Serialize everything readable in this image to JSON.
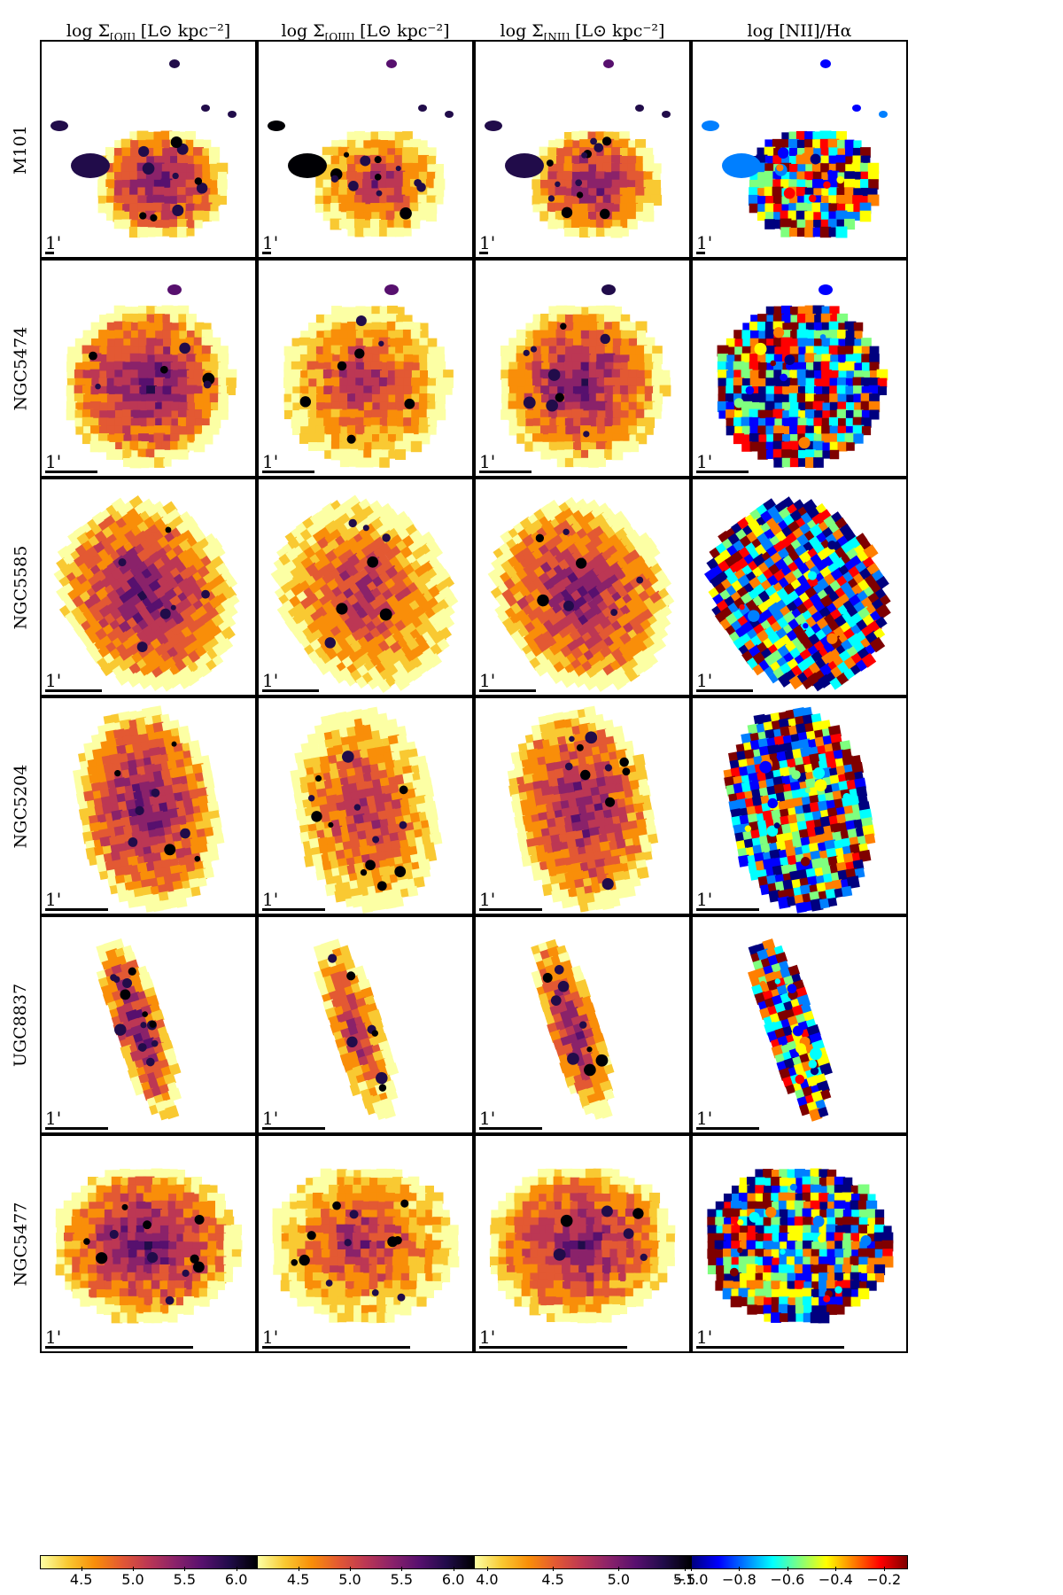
{
  "figure": {
    "column_titles": [
      {
        "prefix": "log Σ",
        "sub": "[OII]",
        "suffix": " [L⊙ kpc⁻²]"
      },
      {
        "prefix": "log Σ",
        "sub": "[OIII]",
        "suffix": " [L⊙ kpc⁻²]"
      },
      {
        "prefix": "log Σ",
        "sub": "[NII]",
        "suffix": " [L⊙ kpc⁻²]"
      },
      {
        "prefix": "log [NII]/Hα",
        "sub": "",
        "suffix": ""
      }
    ],
    "rows": [
      {
        "galaxy": "M101",
        "scale_label": "1'",
        "scale_fraction": 0.04
      },
      {
        "galaxy": "NGC5474",
        "scale_label": "1'",
        "scale_fraction": 0.24
      },
      {
        "galaxy": "NGC5585",
        "scale_label": "1'",
        "scale_fraction": 0.26
      },
      {
        "galaxy": "NGC5204",
        "scale_label": "1'",
        "scale_fraction": 0.29
      },
      {
        "galaxy": "UGC8837",
        "scale_label": "1'",
        "scale_fraction": 0.29
      },
      {
        "galaxy": "NGC5477",
        "scale_label": "1'",
        "scale_fraction": 0.68
      }
    ],
    "colorbars": [
      {
        "name": "OII",
        "colormap": "inferno_r",
        "range": [
          4.1,
          6.2
        ],
        "ticks": [
          "4.5",
          "5.0",
          "5.5",
          "6.0"
        ],
        "tick_values": [
          4.5,
          5.0,
          5.5,
          6.0
        ]
      },
      {
        "name": "OIII",
        "colormap": "inferno_r",
        "range": [
          4.1,
          6.2
        ],
        "ticks": [
          "4.5",
          "5.0",
          "5.5",
          "6.0"
        ],
        "tick_values": [
          4.5,
          5.0,
          5.5,
          6.0
        ]
      },
      {
        "name": "NII",
        "colormap": "inferno_r",
        "range": [
          3.9,
          5.55
        ],
        "ticks": [
          "4.0",
          "4.5",
          "5.0",
          "5.5"
        ],
        "tick_values": [
          4.0,
          4.5,
          5.0,
          5.5
        ]
      },
      {
        "name": "NII/Ha",
        "colormap": "jet",
        "range": [
          -1.0,
          -0.1
        ],
        "ticks": [
          "−1.0",
          "−0.8",
          "−0.6",
          "−0.4",
          "−0.2"
        ],
        "tick_values": [
          -1.0,
          -0.8,
          -0.6,
          -0.4,
          -0.2
        ]
      }
    ],
    "colors": {
      "inferno_low": "#fcffa4",
      "inferno_mid": "#f3771a",
      "inferno_high": "#000004",
      "jet_low": "#00007f",
      "jet_mid": "#7fff7f",
      "jet_high": "#7f0000"
    }
  }
}
